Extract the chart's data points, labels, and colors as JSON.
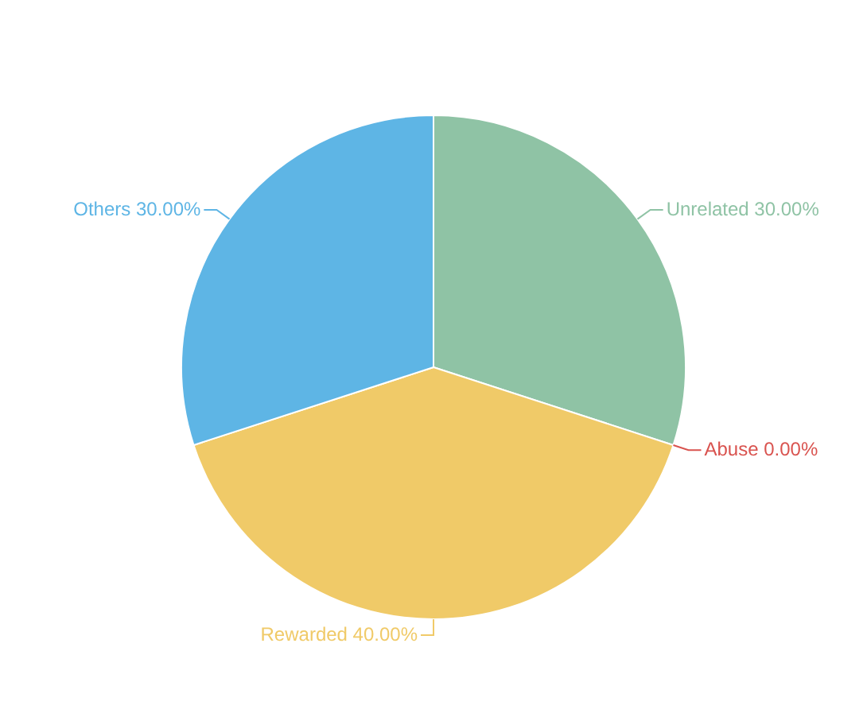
{
  "chart_data": {
    "type": "pie",
    "categories": [
      "Unrelated",
      "Abuse",
      "Rewarded",
      "Others"
    ],
    "values": [
      30,
      0,
      40,
      30
    ],
    "value_labels": [
      "30.00%",
      "0.00%",
      "40.00%",
      "30.00%"
    ],
    "colors": [
      "#8fc3a5",
      "#d9534f",
      "#f0ca68",
      "#5eb5e5"
    ]
  }
}
